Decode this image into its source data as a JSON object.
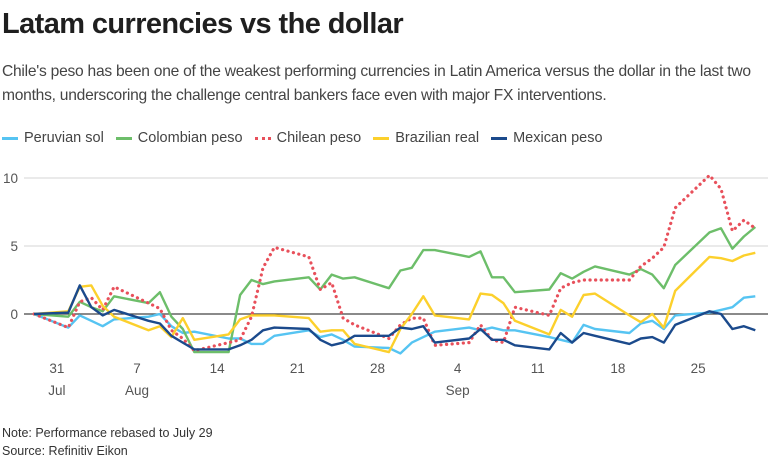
{
  "chart_data": {
    "type": "line",
    "title": "Latam currencies vs the dollar",
    "subtitle": "Chile's peso has been one of the weakest performing currencies in Latin America versus the dollar in the last two months, underscoring the challenge central bankers face even with major FX interventions.",
    "xlabel": "",
    "ylabel": "",
    "ylim": [
      -3.5,
      11
    ],
    "y_ticks": [
      "10",
      "5",
      "0"
    ],
    "y_tick_values": [
      10,
      5,
      0
    ],
    "grid": true,
    "legend_position": "top-left",
    "x_ticks": [
      {
        "date": "Jul 31",
        "label": "31",
        "month": "Jul"
      },
      {
        "date": "Aug 7",
        "label": "7",
        "month": "Aug"
      },
      {
        "date": "Aug 14",
        "label": "14",
        "month": ""
      },
      {
        "date": "Aug 21",
        "label": "21",
        "month": ""
      },
      {
        "date": "Aug 28",
        "label": "28",
        "month": ""
      },
      {
        "date": "Sep 4",
        "label": "4",
        "month": "Sep"
      },
      {
        "date": "Sep 11",
        "label": "11",
        "month": ""
      },
      {
        "date": "Sep 18",
        "label": "18",
        "month": ""
      },
      {
        "date": "Sep 25",
        "label": "25",
        "month": ""
      }
    ],
    "x": [
      "Jul 29",
      "Aug 1",
      "Aug 2",
      "Aug 3",
      "Aug 4",
      "Aug 5",
      "Aug 8",
      "Aug 9",
      "Aug 10",
      "Aug 11",
      "Aug 12",
      "Aug 15",
      "Aug 16",
      "Aug 17",
      "Aug 18",
      "Aug 19",
      "Aug 22",
      "Aug 23",
      "Aug 24",
      "Aug 25",
      "Aug 26",
      "Aug 29",
      "Aug 30",
      "Aug 31",
      "Sep 1",
      "Sep 2",
      "Sep 5",
      "Sep 6",
      "Sep 7",
      "Sep 8",
      "Sep 9",
      "Sep 12",
      "Sep 13",
      "Sep 14",
      "Sep 15",
      "Sep 16",
      "Sep 19",
      "Sep 20",
      "Sep 21",
      "Sep 22",
      "Sep 23",
      "Sep 26",
      "Sep 27",
      "Sep 28",
      "Sep 29",
      "Sep 30"
    ],
    "series": [
      {
        "name": "Peruvian sol",
        "color": "#56c4f2",
        "style": "solid",
        "values": [
          0,
          -1.0,
          -0.1,
          -0.5,
          -0.9,
          -0.4,
          -0.2,
          0,
          -0.9,
          -1.4,
          -1.3,
          -1.8,
          -1.8,
          -2.2,
          -2.2,
          -1.6,
          -1.2,
          -1.7,
          -1.5,
          -1.9,
          -2.4,
          -2.5,
          -2.9,
          -2.1,
          -1.7,
          -1.3,
          -1.0,
          -1.2,
          -1.0,
          -1.2,
          -1.2,
          -1.7,
          -1.9,
          -2.1,
          -0.8,
          -1.1,
          -1.4,
          -0.7,
          -0.5,
          -1.1,
          -0.1,
          0.1,
          0.3,
          0.5,
          1.2,
          1.3
        ]
      },
      {
        "name": "Colombian peso",
        "color": "#6dbe6a",
        "style": "solid",
        "values": [
          0,
          -0.2,
          0.9,
          0.5,
          0.2,
          1.3,
          0.8,
          1.6,
          -0.2,
          -1.1,
          -2.8,
          -2.8,
          1.4,
          2.5,
          2.2,
          2.4,
          2.7,
          1.8,
          2.9,
          2.6,
          2.7,
          1.9,
          3.2,
          3.4,
          4.7,
          4.7,
          4.2,
          4.6,
          2.7,
          2.7,
          1.6,
          1.8,
          3.0,
          2.6,
          3.1,
          3.5,
          2.9,
          3.3,
          2.9,
          1.9,
          3.6,
          6.0,
          6.3,
          4.8,
          5.7,
          6.4
        ]
      },
      {
        "name": "Chilean peso",
        "color": "#e8505b",
        "style": "dotted",
        "values": [
          0,
          -1.0,
          0.9,
          1.2,
          0.3,
          2.0,
          0.8,
          0.4,
          -1.2,
          -1.8,
          -2.7,
          -2.1,
          -1.9,
          -0.2,
          3.4,
          4.9,
          4.2,
          1.8,
          2.3,
          -0.3,
          -0.8,
          -1.8,
          -0.8,
          -0.3,
          -0.3,
          -2.3,
          -2.1,
          -0.8,
          -1.9,
          -2.1,
          0.5,
          -0.1,
          1.9,
          2.3,
          2.5,
          2.5,
          2.5,
          3.5,
          4.1,
          4.9,
          7.8,
          10.2,
          9.2,
          6.1,
          6.9,
          6.3
        ]
      },
      {
        "name": "Brazilian real",
        "color": "#fcd02c",
        "style": "solid",
        "values": [
          0,
          0.2,
          2.0,
          2.1,
          0.6,
          -0.2,
          -1.2,
          -0.9,
          -1.7,
          -0.3,
          -1.9,
          -1.5,
          -0.4,
          -0.1,
          -0.1,
          -0.1,
          -0.3,
          -1.3,
          -1.2,
          -1.2,
          -2.2,
          -2.8,
          -1.1,
          0,
          1.3,
          -0.1,
          -0.4,
          1.5,
          1.4,
          0.8,
          -0.5,
          -1.5,
          0.3,
          -0.2,
          1.4,
          1.5,
          -0.1,
          -0.6,
          0,
          -1.0,
          1.7,
          4.2,
          4.1,
          3.9,
          4.3,
          4.5
        ]
      },
      {
        "name": "Mexican peso",
        "color": "#1b4a8c",
        "style": "solid",
        "values": [
          0,
          0.1,
          2.1,
          0.5,
          -0.1,
          0.3,
          -0.5,
          -0.7,
          -1.6,
          -2.1,
          -2.6,
          -2.6,
          -2.3,
          -1.9,
          -1.2,
          -1.0,
          -1.1,
          -1.9,
          -2.3,
          -2.1,
          -1.6,
          -1.6,
          -1.0,
          -1.1,
          -0.9,
          -2.1,
          -1.8,
          -1.1,
          -1.9,
          -1.9,
          -2.3,
          -2.6,
          -1.4,
          -2.1,
          -1.4,
          -1.6,
          -2.2,
          -1.8,
          -1.7,
          -2.1,
          -0.8,
          0.2,
          0,
          -1.1,
          -0.9,
          -1.2
        ]
      }
    ],
    "notes": {
      "note": "Note: Performance rebased to July 29",
      "source": "Source: Refinitiv Eikon"
    }
  }
}
